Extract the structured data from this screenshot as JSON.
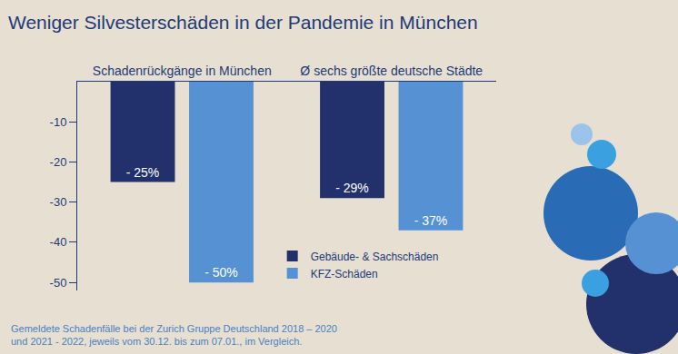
{
  "chart_data": {
    "type": "bar",
    "title": "Weniger Silvesterschäden in der Pandemie in München",
    "categories": [
      "Schadenrückgänge in München",
      "Ø sechs größte deutsche Städte"
    ],
    "series": [
      {
        "name": "Gebäude- & Sachschäden",
        "color": "#22306b",
        "values": [
          -25,
          -29
        ],
        "value_labels": [
          "- 25%",
          "- 29%"
        ]
      },
      {
        "name": "KFZ-Schäden",
        "color": "#5591d3",
        "values": [
          -50,
          -37
        ],
        "value_labels": [
          "- 50%",
          "- 37%"
        ]
      }
    ],
    "ylim": [
      -52,
      0
    ],
    "yticks": [
      -10,
      -20,
      -30,
      -40,
      -50
    ],
    "grid": false,
    "legend": "lower center",
    "data_labels": true,
    "note": [
      "Gemeldete Schadenfälle bei der Zurich Gruppe Deutschland 2018 – 2020",
      "und 2021 - 2022, jeweils vom 30.12. bis zum 07.01., im Vergleich."
    ]
  }
}
